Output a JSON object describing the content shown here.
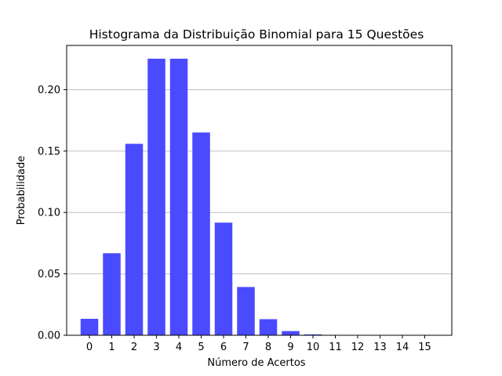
{
  "chart_data": {
    "type": "bar",
    "title": "Histograma da Distribuição Binomial para 15 Questões",
    "xlabel": "Número de Acertos",
    "ylabel": "Probabilidade",
    "categories": [
      "0",
      "1",
      "2",
      "3",
      "4",
      "5",
      "6",
      "7",
      "8",
      "9",
      "10",
      "11",
      "12",
      "13",
      "14",
      "15"
    ],
    "values": [
      0.0134,
      0.0668,
      0.1559,
      0.2252,
      0.2252,
      0.1651,
      0.0917,
      0.0393,
      0.0131,
      0.0034,
      0.0007,
      0.0001,
      0.0,
      0.0,
      0.0,
      0.0
    ],
    "ylim": [
      0,
      0.236
    ],
    "yticks": [
      "0.00",
      "0.05",
      "0.10",
      "0.15",
      "0.20"
    ],
    "ytick_values": [
      0,
      0.05,
      0.1,
      0.15,
      0.2
    ],
    "grid": "y",
    "bar_color": "#4a4aff"
  }
}
